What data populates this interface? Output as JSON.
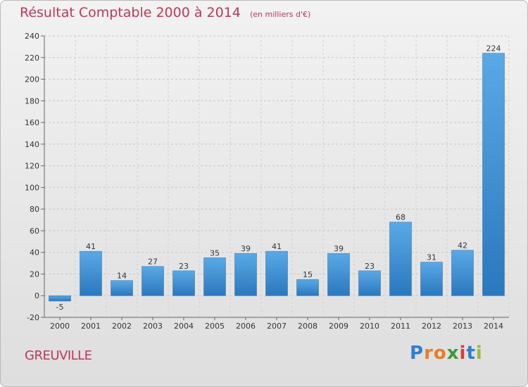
{
  "chart_data": {
    "type": "bar",
    "title": "Résultat Comptable 2000 à 2014",
    "subtitle": "(en milliers d'€)",
    "categories": [
      "2000",
      "2001",
      "2002",
      "2003",
      "2004",
      "2005",
      "2006",
      "2007",
      "2008",
      "2009",
      "2010",
      "2011",
      "2012",
      "2013",
      "2014"
    ],
    "values": [
      -5,
      41,
      14,
      27,
      23,
      35,
      39,
      41,
      15,
      39,
      23,
      68,
      31,
      42,
      224
    ],
    "ylim": [
      -20,
      240
    ],
    "yticks": [
      -20,
      0,
      20,
      40,
      60,
      80,
      100,
      120,
      140,
      160,
      180,
      200,
      220,
      240
    ],
    "grid": "dashed horizontal",
    "bar_color": "#3d8fd1",
    "accent_color": "#c2365b"
  },
  "commune": "GREUVILLE",
  "logo": {
    "letters": [
      "P",
      "r",
      "o",
      "x",
      "i",
      "t",
      "i"
    ],
    "colors": [
      "#2f7fd0",
      "#e67e22",
      "#e67e22",
      "#3a9a3a",
      "#d43f3a",
      "#2f7fd0",
      "#8fbf3f"
    ]
  }
}
